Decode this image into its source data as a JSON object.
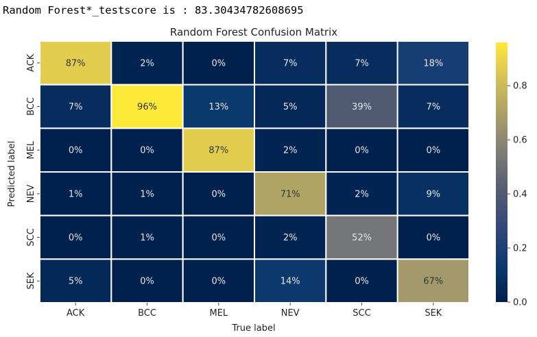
{
  "console": {
    "output_line": "Random Forest*_testscore is : 83.30434782608695"
  },
  "colormap": {
    "name": "cividis",
    "stops": [
      "#00204d",
      "#0b3a6e",
      "#32477a",
      "#555c70",
      "#7c7b78",
      "#a89d69",
      "#d3c05a",
      "#fee838"
    ]
  },
  "chart_data": {
    "type": "heatmap",
    "title": "Random Forest Confusion Matrix",
    "xlabel": "True label",
    "ylabel": "Predicted label",
    "x_categories": [
      "ACK",
      "BCC",
      "MEL",
      "NEV",
      "SCC",
      "SEK"
    ],
    "y_categories": [
      "ACK",
      "BCC",
      "MEL",
      "NEV",
      "SCC",
      "SEK"
    ],
    "values": [
      [
        0.87,
        0.02,
        0.0,
        0.07,
        0.07,
        0.18
      ],
      [
        0.07,
        0.96,
        0.13,
        0.05,
        0.39,
        0.07
      ],
      [
        0.0,
        0.0,
        0.87,
        0.02,
        0.0,
        0.0
      ],
      [
        0.01,
        0.01,
        0.0,
        0.71,
        0.02,
        0.09
      ],
      [
        0.0,
        0.01,
        0.0,
        0.02,
        0.52,
        0.0
      ],
      [
        0.05,
        0.0,
        0.0,
        0.14,
        0.0,
        0.67
      ]
    ],
    "cell_labels": [
      [
        "87%",
        "2%",
        "0%",
        "7%",
        "7%",
        "18%"
      ],
      [
        "7%",
        "96%",
        "13%",
        "5%",
        "39%",
        "7%"
      ],
      [
        "0%",
        "0%",
        "87%",
        "2%",
        "0%",
        "0%"
      ],
      [
        "1%",
        "1%",
        "0%",
        "71%",
        "2%",
        "9%"
      ],
      [
        "0%",
        "1%",
        "0%",
        "2%",
        "52%",
        "0%"
      ],
      [
        "5%",
        "0%",
        "0%",
        "14%",
        "0%",
        "67%"
      ]
    ],
    "colorbar": {
      "range": [
        0,
        0.96
      ],
      "ticks": [
        0.0,
        0.2,
        0.4,
        0.6,
        0.8
      ],
      "tick_labels": [
        "0.0",
        "0.2",
        "0.4",
        "0.6",
        "0.8"
      ]
    }
  }
}
